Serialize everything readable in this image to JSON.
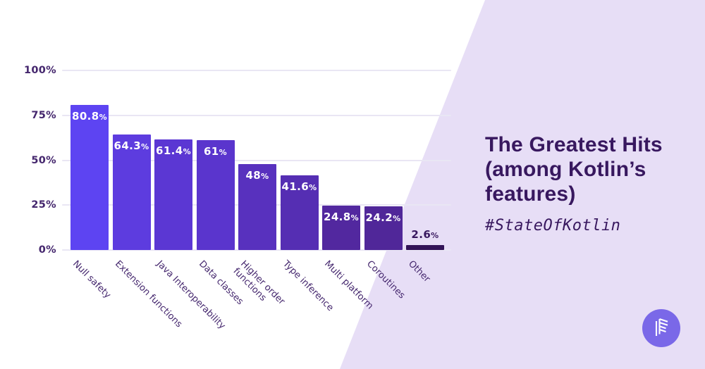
{
  "panel": {
    "title": "The Greatest Hits (among Kotlin’s features)",
    "hashtag": "#StateOfKotlin"
  },
  "chart_data": {
    "type": "bar",
    "categories": [
      "Null safety",
      "Extension functions",
      "Java Interoperability",
      "Data classes",
      "Higher order\nfunctions",
      "Type inference",
      "Multi platform",
      "Coroutines",
      "Other"
    ],
    "values": [
      80.8,
      64.3,
      61.4,
      61,
      48,
      41.6,
      24.8,
      24.2,
      2.6
    ],
    "labels": [
      "80.8%",
      "64.3%",
      "61.4%",
      "61%",
      "48%",
      "41.6%",
      "24.8%",
      "24.2%",
      "2.6%"
    ],
    "bar_colors": [
      "#5d44f2",
      "#5d3cdf",
      "#5b37d3",
      "#5a35cd",
      "#5831be",
      "#552eb3",
      "#52289f",
      "#502799",
      "#321357"
    ],
    "yticks": [
      "100%",
      "75%",
      "50%",
      "25%",
      "0%"
    ],
    "ytick_values": [
      100,
      75,
      50,
      25,
      0
    ],
    "ylim": [
      0,
      100
    ],
    "grid": true,
    "legend": "none",
    "outside_label_threshold": 5,
    "xlabel": "",
    "ylabel": ""
  },
  "colors": {
    "accent_overlay": "#e7def6",
    "gridline": "#e9e6f4",
    "axis_text": "#44266d",
    "title_text": "#38185f",
    "value_label_inside": "#ffffff",
    "value_label_outside": "#38185f",
    "logo_circle": "#7a68e8",
    "logo_mark": "#ffffff"
  }
}
